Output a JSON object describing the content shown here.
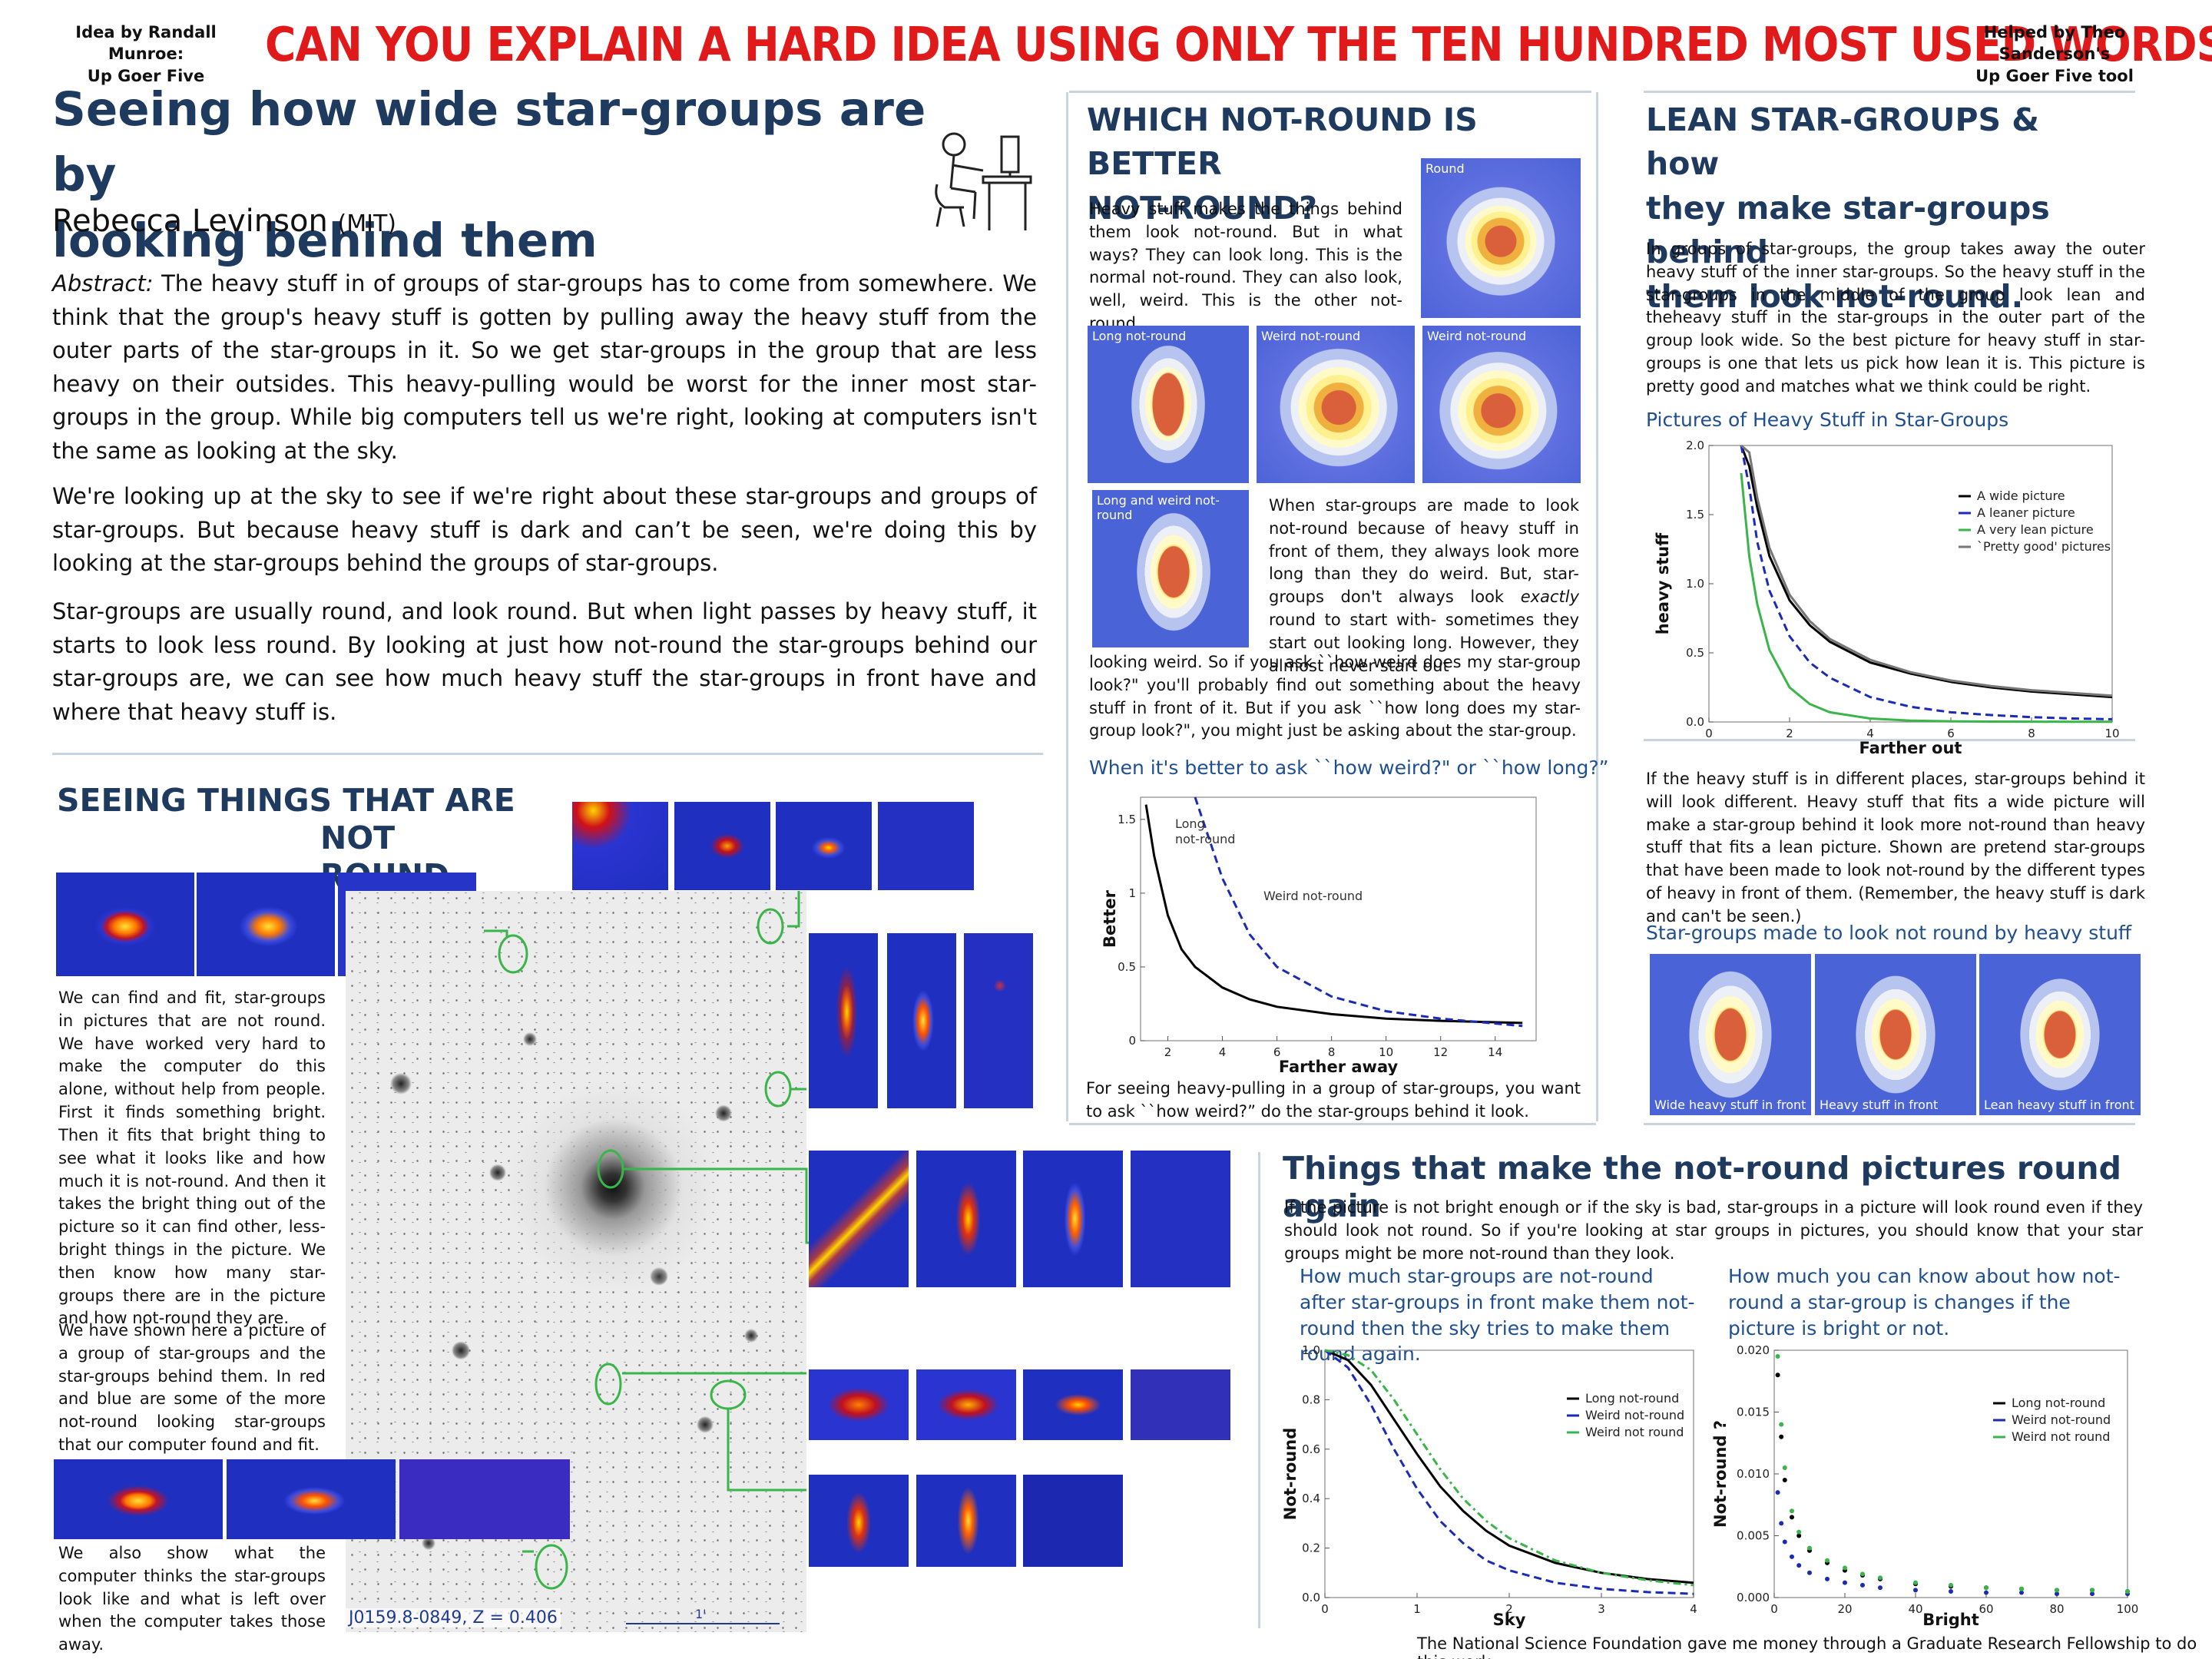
{
  "banner": {
    "left_credit_1": "Idea by Randall Munroe:",
    "left_credit_2": "Up Goer Five",
    "headline": "CAN YOU EXPLAIN A HARD IDEA USING ONLY THE TEN HUNDRED MOST USED WORDS?",
    "right_credit_1": "Helped by Theo Sanderson's",
    "right_credit_2": "Up Goer Five tool"
  },
  "colors": {
    "headline": "#e01a1a",
    "title": "#1f3a5f",
    "subtitle": "#1f4f8f",
    "green_marker": "#39b54a"
  },
  "title": {
    "line1": "Seeing how wide star-groups are by",
    "line2": "looking behind them",
    "author": "Rebecca Levinson",
    "affiliation": "(MIT)",
    "icon": "stick-figure-at-desk-icon"
  },
  "abstract": {
    "label": "Abstract:",
    "p1": "The heavy stuff in of groups of star-groups has to come from somewhere. We think that the group's heavy stuff is gotten by pulling away the heavy stuff from the outer parts of the star-groups in it.  So we get star-groups in the group that are less heavy on their outsides. This heavy-pulling would be worst for the inner most star-groups in the group.  While big computers tell us we're right, looking at computers isn't the same as looking at the sky.",
    "p2": "We're looking up at the sky to see if we're right about these star-groups and groups of star-groups. But because heavy stuff is dark and can’t be seen, we're doing this by looking at the star-groups behind the groups of star-groups.",
    "p3": "Star-groups are usually round, and look round. But when light passes by heavy stuff, it starts to look less round.  By looking at just how not-round the star-groups behind our star-groups are, we can see how much heavy stuff the star-groups in front have and where that heavy stuff is."
  },
  "seeing": {
    "title_1": "SEEING THINGS THAT ARE",
    "title_2": "NOT ROUND",
    "p1": "We can find and fit, star-groups in pictures that are not round. We have worked very hard to make the computer do this alone, without help from people. First it finds something bright. Then it fits that bright thing to see what it looks like and how much it is not-round. And then it takes the bright thing out of the picture so it can find other, less-bright things in the picture. We then know how many star-groups there are in the picture and how not-round they are.",
    "p2": "We have shown here a picture of a group of star-groups and the star-groups behind them. In red and blue are some of the more not-round looking star-groups that our computer found and fit.",
    "p3": "We also show what the computer thinks the star-groups look like and what is left over when the computer takes those away.",
    "cluster_label": "J0159.8-0849, Z = 0.406",
    "scale_label": "1'"
  },
  "which": {
    "title_1": "WHICH NOT-ROUND IS BETTER",
    "title_2": "NOT-ROUND?",
    "p1": "Heavy stuff makes the things behind them look not-round. But in what ways? They can look long. This is the normal not-round.   They can also look, well, weird. This is the other not-round.",
    "panel_round": "Round",
    "panel_long": "Long not-round",
    "panel_weird_1": "Weird not-round",
    "panel_weird_2": "Weird not-round",
    "panel_long_weird": "Long and weird not-round",
    "p2_a": "When star-groups are made to look not-round because of heavy stuff in front of them, they always look more long than they do weird. But, star-groups don't always look",
    "p2_em": "exactly",
    "p2_b": "round to start with- sometimes they start out looking long. However, they almost never start out",
    "p2_c": "looking weird. So if you ask ``how weird does my star-group look?\" you'll probably find out something about the heavy stuff in front of it. But if you ask ``how long does my star-group look?\", you might just be asking about the star-group.",
    "chart_title": "When it's better to ask ``how weird?\" or ``how long?”",
    "caption": "For seeing heavy-pulling in a group of star-groups, you want to ask ``how weird?” do the star-groups behind it look."
  },
  "lean": {
    "title_1": "LEAN STAR-GROUPS & how",
    "title_2": "they make star-groups behind",
    "title_3": "them look not-round.",
    "p1": "In groups of star-groups, the group takes away the outer heavy stuff of the inner star-groups.   So the heavy stuff in the star-groups in the middle of the group look lean and theheavy stuff in the star-groups in the outer part of the group look wide.  So the best picture for heavy stuff in star-groups is one that lets us pick how lean it is.  This picture is pretty good and matches what we think could be right.",
    "chart_title": "Pictures of Heavy Stuff in Star-Groups",
    "p2": "If the heavy stuff is in different places, star-groups behind it will look different.  Heavy stuff that fits a wide picture will make a star-group behind it look more not-round than heavy stuff that fits a lean picture.   Shown are pretend star-groups that have been made to look not-round by the different types of heavy in front of them.  (Remember, the heavy stuff is dark and can't be seen.)",
    "panels_title": "Star-groups made to look not round by heavy stuff",
    "panel_1": "Wide heavy stuff in front",
    "panel_2": "Heavy stuff in front",
    "panel_3": "Lean heavy stuff in front"
  },
  "things": {
    "title": "Things that make the not-round pictures round again",
    "p1": "If the picture is not bright enough or if the sky is bad, star-groups in a picture will look round even if they should look not round.    So if you're looking at star groups in pictures, you should know that your star groups might be more not-round than they look.",
    "sub_left": "How much star-groups are not-round after star-groups in front make them not-round then the sky tries to make them round again.",
    "sub_right": "How much you can know about how not-round a star-group is changes if the picture is bright or not."
  },
  "footer": "The National Science Foundation gave me money through a Graduate Research Fellowship to do this work.",
  "chart_data": [
    {
      "type": "line",
      "id": "better-vs-distance",
      "xlabel": "Farther away",
      "ylabel": "Better",
      "xlim": [
        1,
        15.5
      ],
      "ylim": [
        0,
        1.65
      ],
      "xticks": [
        2,
        4,
        6,
        8,
        10,
        12,
        14
      ],
      "yticks": [
        0.0,
        0.5,
        1.0,
        1.5
      ],
      "annotations": [
        "Long not-round",
        "Weird not-round"
      ],
      "x": [
        1.2,
        1.5,
        2,
        2.5,
        3,
        4,
        5,
        6,
        8,
        10,
        12,
        15
      ],
      "series": [
        {
          "name": "Long not-round",
          "color": "#000000",
          "dash": "solid",
          "values": [
            1.6,
            1.25,
            0.85,
            0.62,
            0.5,
            0.36,
            0.28,
            0.23,
            0.18,
            0.15,
            0.135,
            0.12
          ]
        },
        {
          "name": "Weird not-round",
          "color": "#1a2bb5",
          "dash": "dashed",
          "values": [
            null,
            null,
            null,
            null,
            1.65,
            1.1,
            0.72,
            0.5,
            0.3,
            0.2,
            0.15,
            0.1
          ]
        }
      ]
    },
    {
      "type": "line",
      "id": "heavy-stuff-profiles",
      "xlabel": "Farther out",
      "ylabel": "heavy stuff",
      "xlim": [
        0,
        10
      ],
      "ylim": [
        0,
        2.0
      ],
      "xticks": [
        0,
        2,
        4,
        6,
        8,
        10
      ],
      "yticks": [
        0.0,
        0.5,
        1.0,
        1.5,
        2.0
      ],
      "legend": "top-right",
      "x": [
        0.8,
        1.0,
        1.2,
        1.5,
        2,
        2.5,
        3,
        4,
        5,
        6,
        7,
        8,
        9,
        10
      ],
      "series": [
        {
          "name": "A wide picture",
          "color": "#000000",
          "dash": "solid",
          "values": [
            2.0,
            1.85,
            1.55,
            1.2,
            0.88,
            0.7,
            0.58,
            0.43,
            0.35,
            0.29,
            0.25,
            0.22,
            0.2,
            0.18
          ]
        },
        {
          "name": "A leaner picture",
          "color": "#1a2bb5",
          "dash": "dashed",
          "values": [
            2.0,
            1.7,
            1.3,
            0.95,
            0.62,
            0.43,
            0.32,
            0.18,
            0.11,
            0.07,
            0.05,
            0.035,
            0.025,
            0.02
          ]
        },
        {
          "name": "A very lean picture",
          "color": "#39b54a",
          "dash": "solid",
          "values": [
            1.8,
            1.2,
            0.85,
            0.52,
            0.25,
            0.13,
            0.07,
            0.025,
            0.01,
            0.005,
            0.003,
            0.002,
            0.001,
            0.001
          ]
        },
        {
          "name": "`Pretty good' pictures",
          "color": "#777777",
          "dash": "solid",
          "values": [
            2.0,
            1.95,
            1.62,
            1.26,
            0.92,
            0.73,
            0.6,
            0.45,
            0.36,
            0.3,
            0.26,
            0.23,
            0.21,
            0.19
          ]
        }
      ]
    },
    {
      "type": "line",
      "id": "notround-vs-sky",
      "xlabel": "Sky",
      "ylabel": "Not-round",
      "xlim": [
        0,
        4
      ],
      "ylim": [
        0,
        1.0
      ],
      "xticks": [
        0,
        1,
        2,
        3,
        4
      ],
      "yticks": [
        0.0,
        0.2,
        0.4,
        0.6,
        0.8,
        1.0
      ],
      "legend": "top-right",
      "x": [
        0,
        0.25,
        0.5,
        0.75,
        1.0,
        1.25,
        1.5,
        1.75,
        2.0,
        2.5,
        3.0,
        3.5,
        4.0
      ],
      "series": [
        {
          "name": "Long not-round",
          "color": "#000000",
          "dash": "solid",
          "values": [
            1.0,
            0.96,
            0.86,
            0.72,
            0.58,
            0.45,
            0.35,
            0.27,
            0.21,
            0.14,
            0.1,
            0.075,
            0.06
          ]
        },
        {
          "name": "Weird not-round",
          "color": "#1a2bb5",
          "dash": "dashed",
          "values": [
            1.0,
            0.93,
            0.78,
            0.6,
            0.44,
            0.31,
            0.22,
            0.15,
            0.11,
            0.06,
            0.035,
            0.022,
            0.015
          ]
        },
        {
          "name": "Weird not round",
          "color": "#39b54a",
          "dash": "dashdot",
          "values": [
            1.0,
            0.98,
            0.92,
            0.8,
            0.66,
            0.52,
            0.4,
            0.31,
            0.24,
            0.15,
            0.1,
            0.07,
            0.05
          ]
        }
      ]
    },
    {
      "type": "scatter",
      "id": "uncertainty-vs-bright",
      "xlabel": "Bright",
      "ylabel": "Not-round ?",
      "xlim": [
        0,
        100
      ],
      "ylim": [
        0,
        0.02
      ],
      "xticks": [
        0,
        20,
        40,
        60,
        80,
        100
      ],
      "yticks": [
        0.0,
        0.005,
        0.01,
        0.015,
        0.02
      ],
      "legend": "top-right",
      "x": [
        1,
        2,
        3,
        5,
        7,
        10,
        15,
        20,
        25,
        30,
        40,
        50,
        60,
        70,
        80,
        90,
        100
      ],
      "series": [
        {
          "name": "Long not-round",
          "color": "#000000",
          "values": [
            0.018,
            0.013,
            0.0095,
            0.0065,
            0.005,
            0.0038,
            0.0028,
            0.0022,
            0.0018,
            0.0015,
            0.0011,
            0.0009,
            0.0008,
            0.0007,
            0.0006,
            0.0006,
            0.0005
          ]
        },
        {
          "name": "Weird not-round",
          "color": "#1a2bb5",
          "values": [
            0.0085,
            0.006,
            0.0045,
            0.0033,
            0.0026,
            0.002,
            0.0015,
            0.0012,
            0.001,
            0.0008,
            0.0006,
            0.0005,
            0.0004,
            0.0004,
            0.0003,
            0.0003,
            0.0003
          ]
        },
        {
          "name": "Weird not round",
          "color": "#39b54a",
          "values": [
            0.0195,
            0.014,
            0.0105,
            0.007,
            0.0053,
            0.004,
            0.003,
            0.0024,
            0.0019,
            0.0016,
            0.0012,
            0.001,
            0.0008,
            0.0007,
            0.0006,
            0.0006,
            0.0005
          ]
        }
      ]
    }
  ]
}
